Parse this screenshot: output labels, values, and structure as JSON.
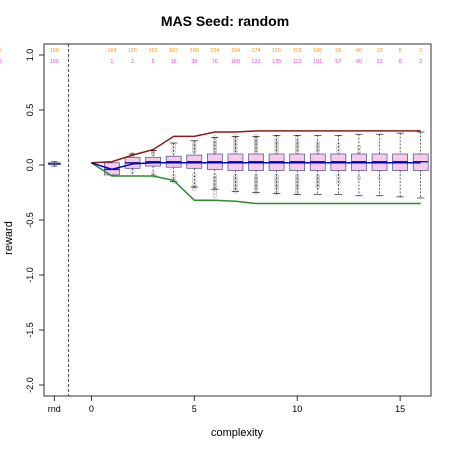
{
  "chart_data": {
    "type": "boxplot",
    "title": "MAS  Seed: random",
    "xlabel": "complexity",
    "ylabel": "reward",
    "xlim": [
      -2.3,
      16.5
    ],
    "ylim": [
      -2.1,
      1.1
    ],
    "x_ticks": [
      {
        "value": 0,
        "label": "0"
      },
      {
        "value": 5,
        "label": "5"
      },
      {
        "value": 10,
        "label": "10"
      },
      {
        "value": 15,
        "label": "15"
      }
    ],
    "y_ticks": [
      {
        "value": -2.0,
        "label": "-2.0"
      },
      {
        "value": -1.5,
        "label": "-1.5"
      },
      {
        "value": -1.0,
        "label": "-1.0"
      },
      {
        "value": -0.5,
        "label": "-0.5"
      },
      {
        "value": 0.0,
        "label": "0.0"
      },
      {
        "value": 0.5,
        "label": "0.5"
      },
      {
        "value": 1.0,
        "label": "1.0"
      }
    ],
    "random_label": "rnd",
    "random_position": -1.8,
    "separator_x": -1.1,
    "random_box": {
      "q1": 0.005,
      "median": 0.01,
      "q3": 0.02,
      "whisker_low": -0.01,
      "whisker_high": 0.03
    },
    "counts_orange": [
      "166",
      "164",
      "165",
      "161",
      "167",
      "180",
      "224",
      "194",
      "174",
      "155",
      "118",
      "106",
      "58",
      "40",
      "23",
      "8",
      "2",
      "1"
    ],
    "counts_violet": [
      "166",
      "1",
      "2",
      "5",
      "16",
      "39",
      "76",
      "109",
      "123",
      "135",
      "112",
      "101",
      "57",
      "40",
      "23",
      "8",
      "2",
      "1"
    ],
    "boxes": [
      {
        "x": 1,
        "q1": -0.09,
        "median": -0.04,
        "q3": 0.02,
        "whisker_low": -0.09,
        "whisker_high": 0.02
      },
      {
        "x": 2,
        "q1": -0.03,
        "median": 0.02,
        "q3": 0.07,
        "whisker_low": -0.1,
        "whisker_high": 0.1
      },
      {
        "x": 3,
        "q1": -0.01,
        "median": 0.03,
        "q3": 0.07,
        "whisker_low": -0.1,
        "whisker_high": 0.13
      },
      {
        "x": 4,
        "q1": -0.02,
        "median": 0.03,
        "q3": 0.08,
        "whisker_low": -0.15,
        "whisker_high": 0.2
      },
      {
        "x": 5,
        "q1": -0.03,
        "median": 0.03,
        "q3": 0.09,
        "whisker_low": -0.2,
        "whisker_high": 0.22
      },
      {
        "x": 6,
        "q1": -0.04,
        "median": 0.03,
        "q3": 0.1,
        "whisker_low": -0.22,
        "whisker_high": 0.25
      },
      {
        "x": 7,
        "q1": -0.05,
        "median": 0.03,
        "q3": 0.1,
        "whisker_low": -0.24,
        "whisker_high": 0.26
      },
      {
        "x": 8,
        "q1": -0.05,
        "median": 0.03,
        "q3": 0.1,
        "whisker_low": -0.25,
        "whisker_high": 0.26
      },
      {
        "x": 9,
        "q1": -0.05,
        "median": 0.03,
        "q3": 0.1,
        "whisker_low": -0.26,
        "whisker_high": 0.27
      },
      {
        "x": 10,
        "q1": -0.05,
        "median": 0.03,
        "q3": 0.1,
        "whisker_low": -0.27,
        "whisker_high": 0.27
      },
      {
        "x": 11,
        "q1": -0.05,
        "median": 0.03,
        "q3": 0.1,
        "whisker_low": -0.27,
        "whisker_high": 0.27
      },
      {
        "x": 12,
        "q1": -0.05,
        "median": 0.03,
        "q3": 0.1,
        "whisker_low": -0.27,
        "whisker_high": 0.27
      },
      {
        "x": 13,
        "q1": -0.05,
        "median": 0.03,
        "q3": 0.1,
        "whisker_low": -0.28,
        "whisker_high": 0.28
      },
      {
        "x": 14,
        "q1": -0.05,
        "median": 0.03,
        "q3": 0.1,
        "whisker_low": -0.28,
        "whisker_high": 0.28
      },
      {
        "x": 15,
        "q1": -0.05,
        "median": 0.03,
        "q3": 0.1,
        "whisker_low": -0.29,
        "whisker_high": 0.29
      },
      {
        "x": 16,
        "q1": -0.05,
        "median": 0.03,
        "q3": 0.1,
        "whisker_low": -0.3,
        "whisker_high": 0.3
      }
    ],
    "outliers": [
      {
        "x": 2,
        "values": [
          0.08,
          0.09,
          0.1,
          -0.06
        ]
      },
      {
        "x": 3,
        "values": [
          0.1,
          0.12,
          0.13,
          -0.08,
          -0.1
        ]
      },
      {
        "x": 4,
        "values": [
          0.12,
          0.15,
          0.18,
          -0.1,
          -0.13,
          -0.15
        ]
      },
      {
        "x": 5,
        "values": [
          0.12,
          0.14,
          0.16,
          0.18,
          0.2,
          -0.09,
          -0.12,
          -0.15,
          -0.18,
          -0.2,
          -0.22
        ]
      },
      {
        "x": 6,
        "values": [
          0.12,
          0.14,
          0.16,
          0.18,
          0.2,
          0.22,
          0.25,
          -0.1,
          -0.12,
          -0.14,
          -0.16,
          -0.18,
          -0.2,
          -0.22,
          -0.25,
          -0.28
        ]
      },
      {
        "x": 7,
        "values": [
          0.12,
          0.14,
          0.16,
          0.18,
          0.2,
          0.22,
          0.24,
          0.26,
          -0.1,
          -0.12,
          -0.14,
          -0.16,
          -0.18,
          -0.2,
          -0.22,
          -0.24
        ]
      },
      {
        "x": 8,
        "values": [
          0.12,
          0.14,
          0.16,
          0.18,
          0.2,
          0.22,
          0.24,
          0.26,
          -0.1,
          -0.12,
          -0.14,
          -0.16,
          -0.18,
          -0.2,
          -0.22,
          -0.25
        ]
      },
      {
        "x": 9,
        "values": [
          0.12,
          0.14,
          0.16,
          0.18,
          0.2,
          0.22,
          0.25,
          -0.1,
          -0.12,
          -0.14,
          -0.16,
          -0.18,
          -0.2,
          -0.22,
          -0.25
        ]
      },
      {
        "x": 10,
        "values": [
          0.12,
          0.14,
          0.16,
          0.18,
          0.2,
          0.22,
          0.25,
          -0.1,
          -0.12,
          -0.14,
          -0.16,
          -0.18,
          -0.2,
          -0.22,
          -0.25
        ]
      },
      {
        "x": 11,
        "values": [
          0.12,
          0.14,
          0.16,
          0.18,
          0.2,
          -0.1,
          -0.12,
          -0.14,
          -0.16,
          -0.18,
          -0.2
        ]
      },
      {
        "x": 12,
        "values": [
          0.12,
          0.15,
          0.18,
          -0.1,
          -0.13,
          -0.16
        ]
      },
      {
        "x": 13,
        "values": [
          0.12,
          0.16,
          -0.12
        ]
      },
      {
        "x": 14,
        "values": [
          -0.12
        ]
      }
    ],
    "series": [
      {
        "x": [
          0,
          1,
          2,
          3,
          4,
          5,
          6,
          7,
          8,
          9,
          10,
          11,
          12,
          13,
          14,
          15,
          16
        ],
        "values": [
          0.02,
          0.03,
          0.09,
          0.14,
          0.26,
          0.26,
          0.3,
          0.3,
          0.31,
          0.31,
          0.31,
          0.31,
          0.31,
          0.31,
          0.31,
          0.31,
          0.31
        ],
        "color": "#8b1a1a"
      },
      {
        "x": [
          0,
          1,
          2,
          3,
          4,
          5,
          6,
          7,
          8,
          9,
          10,
          11,
          12,
          13,
          14,
          15,
          16
        ],
        "values": [
          0.02,
          -0.1,
          -0.1,
          -0.1,
          -0.14,
          -0.32,
          -0.32,
          -0.33,
          -0.35,
          -0.35,
          -0.35,
          -0.35,
          -0.35,
          -0.35,
          -0.35,
          -0.35,
          -0.35
        ],
        "color": "#2e8b2e"
      },
      {
        "x": [
          0,
          1,
          2,
          3,
          4,
          5,
          6,
          7,
          8,
          9,
          10,
          11,
          12,
          13,
          14,
          15,
          16
        ],
        "values": [
          0.02,
          -0.04,
          0.01,
          0.02,
          0.02,
          0.02,
          0.02,
          0.02,
          0.02,
          0.02,
          0.02,
          0.02,
          0.02,
          0.02,
          0.02,
          0.02,
          0.02
        ],
        "color": "#0000cd"
      }
    ],
    "colors": {
      "box_fill": "#f4cce8",
      "box_border": "#4b4b8c",
      "median": "#1a1a8c",
      "outlier": "#aaaaaa",
      "count_orange": "#ff9900",
      "count_violet": "#ee44ee"
    }
  }
}
